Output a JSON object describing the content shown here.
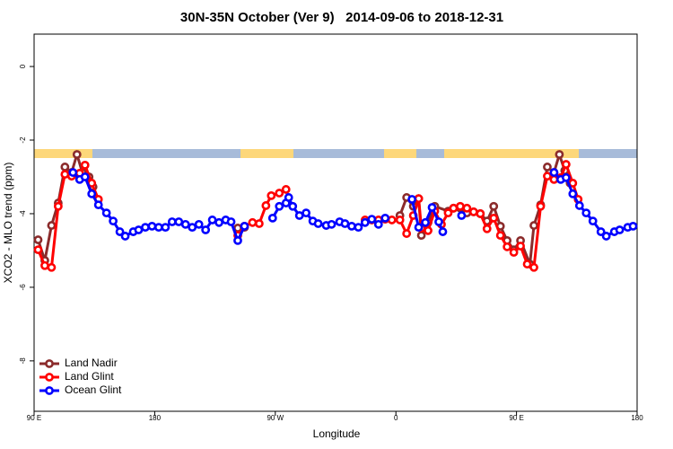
{
  "chart_data": {
    "type": "line",
    "title": "30N-35N October (Ver 9)   2014-09-06 to 2018-12-31",
    "x_label": "Longitude",
    "y_label": "XCO2 - MLO trend (ppm)",
    "xlim": [
      90,
      540
    ],
    "ylim": [
      -9.37,
      0.88
    ],
    "xticks": [
      {
        "value": 90,
        "label": "90 E"
      },
      {
        "value": 180,
        "label": "180"
      },
      {
        "value": 270,
        "label": "90 W"
      },
      {
        "value": 360,
        "label": "0"
      },
      {
        "value": 450,
        "label": "90 E"
      },
      {
        "value": 540,
        "label": "180"
      }
    ],
    "yticks": [
      0,
      -2,
      -4,
      -6,
      -8
    ],
    "legend": "bottomleft",
    "series": [
      {
        "name": "Land Nadir",
        "color": "#8b2b2b",
        "x": [
          93,
          98,
          103,
          108,
          113,
          118,
          122,
          126,
          131,
          134,
          null,
          242,
          247,
          null,
          363,
          368,
          373,
          377,
          379,
          384,
          389,
          399,
          403,
          408,
          413,
          418,
          423,
          428,
          433,
          438,
          443,
          448,
          453,
          460,
          463,
          468,
          473,
          478,
          482,
          486,
          490
        ],
        "values": [
          -4.71,
          -5.27,
          -4.32,
          -3.71,
          -2.73,
          -2.88,
          -2.39,
          -2.88,
          -3.0,
          -3.27,
          null,
          -4.39,
          -4.37,
          null,
          -4.05,
          -3.56,
          -3.8,
          -3.59,
          -4.59,
          -4.24,
          -3.8,
          -3.93,
          -3.85,
          -3.85,
          -3.98,
          -3.95,
          -4.0,
          -4.2,
          -3.8,
          -4.34,
          -4.73,
          -4.98,
          -4.73,
          -5.37,
          -4.32,
          -3.76,
          -2.73,
          -2.88,
          -2.39,
          -2.83,
          -3.17
        ]
      },
      {
        "name": "Land Glint",
        "color": "#ff0000",
        "x": [
          93,
          98,
          103,
          108,
          113,
          118,
          124,
          128,
          133,
          138,
          null,
          242,
          247,
          253,
          258,
          263,
          267,
          273,
          278,
          null,
          337,
          342,
          347,
          352,
          357,
          363,
          368,
          373,
          377,
          379,
          384,
          389,
          394,
          399,
          403,
          408,
          413,
          418,
          423,
          428,
          433,
          438,
          443,
          448,
          453,
          458,
          463,
          468,
          473,
          478,
          483,
          487,
          492,
          496
        ],
        "values": [
          -4.98,
          -5.41,
          -5.46,
          -3.8,
          -2.93,
          -2.98,
          -2.9,
          -2.68,
          -3.17,
          -3.61,
          null,
          -4.59,
          -4.34,
          -4.24,
          -4.27,
          -3.78,
          -3.51,
          -3.44,
          -3.34,
          null,
          -4.17,
          -4.17,
          -4.17,
          -4.15,
          -4.17,
          -4.17,
          -4.54,
          -4.05,
          -3.59,
          -4.39,
          -4.46,
          -3.93,
          -4.29,
          -3.98,
          -3.85,
          -3.8,
          -3.85,
          -3.95,
          -4.0,
          -4.41,
          -4.12,
          -4.59,
          -4.9,
          -5.05,
          -4.88,
          -5.37,
          -5.46,
          -3.8,
          -2.98,
          -3.07,
          -3.02,
          -2.66,
          -3.17,
          -3.61
        ]
      },
      {
        "name": "Ocean Glint",
        "color": "#0000ff",
        "x": [
          119,
          124,
          128,
          133,
          138,
          144,
          149,
          154,
          158,
          164,
          168,
          173,
          178,
          183,
          188,
          193,
          198,
          203,
          208,
          213,
          218,
          223,
          228,
          233,
          237,
          242,
          247,
          null,
          268,
          273,
          278,
          280,
          283,
          288,
          293,
          298,
          302,
          308,
          312,
          318,
          322,
          327,
          332,
          337,
          342,
          347,
          352,
          null,
          372,
          377,
          382,
          387,
          392,
          395,
          null,
          409,
          null,
          478,
          483,
          487,
          492,
          497,
          502,
          507,
          513,
          517,
          523,
          527,
          533,
          537
        ],
        "values": [
          -2.88,
          -3.07,
          -3.0,
          -3.46,
          -3.76,
          -3.98,
          -4.2,
          -4.49,
          -4.61,
          -4.49,
          -4.44,
          -4.37,
          -4.34,
          -4.37,
          -4.37,
          -4.22,
          -4.22,
          -4.29,
          -4.37,
          -4.29,
          -4.44,
          -4.17,
          -4.24,
          -4.17,
          -4.22,
          -4.73,
          -4.34,
          null,
          -4.12,
          -3.8,
          -3.71,
          -3.56,
          -3.8,
          -4.05,
          -3.98,
          -4.2,
          -4.27,
          -4.32,
          -4.29,
          -4.22,
          -4.27,
          -4.34,
          -4.37,
          -4.24,
          -4.15,
          -4.29,
          -4.12,
          null,
          -3.61,
          -4.37,
          -4.24,
          -3.83,
          -4.22,
          -4.49,
          null,
          -4.05,
          null,
          -2.88,
          -3.07,
          -3.02,
          -3.46,
          -3.78,
          -3.98,
          -4.2,
          -4.49,
          -4.61,
          -4.49,
          -4.44,
          -4.37,
          -4.34
        ]
      }
    ]
  }
}
